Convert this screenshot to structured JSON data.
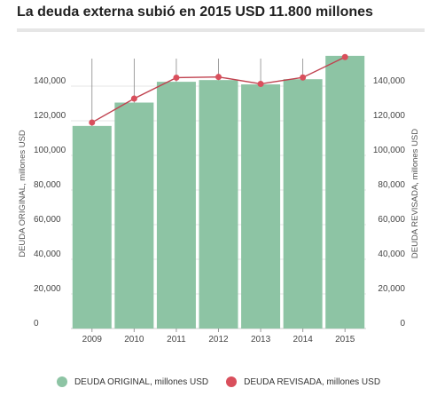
{
  "title": "La deuda externa subió en 2015 USD 11.800 millones",
  "colors": {
    "bar": "#8dc4a4",
    "line": "#c0424f",
    "dot": "#d94f5c",
    "grid": "#e5e5e5",
    "stem": "#888888"
  },
  "legend": [
    {
      "label": "DEUDA ORIGINAL, millones USD",
      "color": "#8dc4a4"
    },
    {
      "label": "DEUDA REVISADA, millones USD",
      "color": "#d94f5c"
    }
  ],
  "chart_data": {
    "type": "bar",
    "categories": [
      "2009",
      "2010",
      "2011",
      "2012",
      "2013",
      "2014",
      "2015"
    ],
    "series": [
      {
        "name": "DEUDA ORIGINAL, millones USD",
        "type": "bar",
        "values": [
          117000,
          130500,
          142500,
          143500,
          141000,
          144000,
          157500
        ]
      },
      {
        "name": "DEUDA REVISADA, millones USD",
        "type": "line",
        "values": [
          119000,
          132800,
          144900,
          145300,
          141300,
          145000,
          156800
        ]
      }
    ],
    "ylabel": "DEUDA ORIGINAL, millones USD",
    "y2label": "DEUDA REVISADA, millones USD",
    "ylim": [
      0,
      160000
    ],
    "y2lim": [
      0,
      160000
    ],
    "yticks": [
      "0",
      "20,000",
      "40,000",
      "60,000",
      "80,000",
      "100,000",
      "120,000",
      "140,000"
    ],
    "y2ticks": [
      "0",
      "20,000",
      "40,000",
      "60,000",
      "80,000",
      "100,000",
      "120,000",
      "140,000"
    ],
    "grid": true
  }
}
